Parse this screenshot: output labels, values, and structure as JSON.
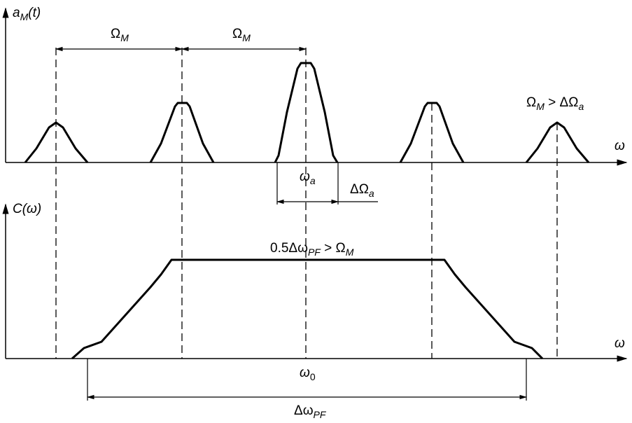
{
  "top_panel": {
    "y_label": [
      "a",
      "M",
      "(t)"
    ],
    "x_label": "ω",
    "spacing_labels": [
      [
        "Ω",
        "M"
      ],
      [
        "Ω",
        "M"
      ]
    ],
    "condition": [
      "Ω",
      "M",
      " > ΔΩ",
      "a"
    ],
    "carrier": [
      "ω",
      "a"
    ],
    "bandwidth": [
      "ΔΩ",
      "a"
    ]
  },
  "bottom_panel": {
    "y_label": "C(ω)",
    "x_label": "ω",
    "plateau": [
      "0.5Δω",
      "PF",
      " > Ω",
      "M"
    ],
    "center": [
      "ω",
      "0"
    ],
    "bandwidth": [
      "Δω",
      "PF"
    ]
  }
}
